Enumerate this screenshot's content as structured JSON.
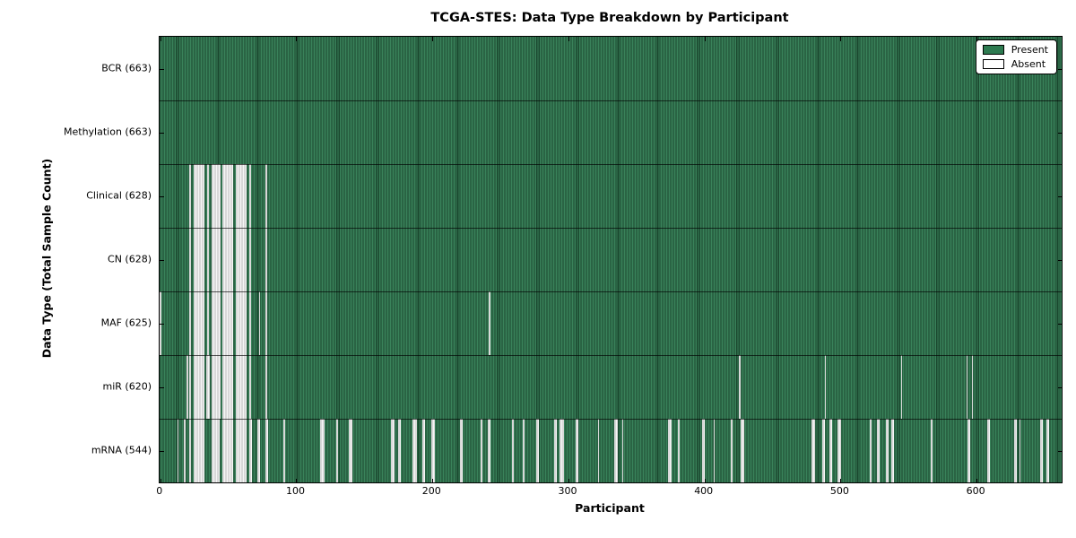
{
  "title": "TCGA-STES: Data Type Breakdown by Participant",
  "chart_data": {
    "type": "heatmap",
    "title": "TCGA-STES: Data Type Breakdown by Participant",
    "xlabel": "Participant",
    "ylabel": "Data Type (Total Sample Count)",
    "x_ticks": [
      0,
      100,
      200,
      300,
      400,
      500,
      600
    ],
    "xlim": [
      -0.5,
      662.5
    ],
    "n_participants": 663,
    "grid": false,
    "legend_position": "upper right",
    "legend": [
      "Present",
      "Absent"
    ],
    "colors": {
      "present": "#2d7a50",
      "present_edge": "#16402a",
      "absent": "#f4f4f4",
      "absent_edge": "#b9b9b9",
      "plot_border": "#000000",
      "background": "#ffffff"
    },
    "rows": [
      {
        "label": "BCR (663)",
        "data_type": "BCR",
        "present_count": 663,
        "absent_participants": []
      },
      {
        "label": "Methylation (663)",
        "data_type": "Methylation",
        "present_count": 663,
        "absent_participants": []
      },
      {
        "label": "Clinical (628)",
        "data_type": "Clinical",
        "present_count": 628,
        "absent_participants": [
          22,
          25,
          26,
          27,
          28,
          29,
          30,
          31,
          32,
          35,
          38,
          39,
          40,
          41,
          42,
          43,
          44,
          46,
          47,
          48,
          49,
          50,
          51,
          52,
          53,
          56,
          57,
          58,
          59,
          60,
          61,
          62,
          63,
          66,
          78
        ]
      },
      {
        "label": "CN (628)",
        "data_type": "CN",
        "present_count": 628,
        "absent_participants": [
          22,
          25,
          26,
          27,
          28,
          29,
          30,
          31,
          32,
          35,
          38,
          39,
          40,
          41,
          42,
          43,
          44,
          46,
          47,
          48,
          49,
          50,
          51,
          52,
          53,
          56,
          57,
          58,
          59,
          60,
          61,
          62,
          63,
          66,
          78
        ]
      },
      {
        "label": "MAF (625)",
        "data_type": "MAF",
        "present_count": 625,
        "absent_participants": [
          0,
          22,
          25,
          26,
          27,
          28,
          29,
          30,
          31,
          32,
          35,
          38,
          39,
          40,
          41,
          42,
          43,
          44,
          46,
          47,
          48,
          49,
          50,
          51,
          52,
          53,
          56,
          57,
          58,
          59,
          60,
          61,
          62,
          63,
          66,
          73,
          78,
          242
        ]
      },
      {
        "label": "miR (620)",
        "data_type": "miR",
        "present_count": 620,
        "absent_participants": [
          20,
          22,
          25,
          26,
          27,
          28,
          29,
          30,
          31,
          32,
          34,
          35,
          36,
          38,
          39,
          40,
          41,
          42,
          43,
          44,
          46,
          47,
          48,
          49,
          50,
          51,
          52,
          53,
          56,
          57,
          58,
          59,
          60,
          61,
          62,
          63,
          66,
          78,
          426,
          489,
          545,
          593,
          597
        ]
      },
      {
        "label": "mRNA (544)",
        "data_type": "mRNA",
        "present_count": 544,
        "absent_participants": [
          13,
          18,
          22,
          25,
          26,
          27,
          28,
          29,
          30,
          31,
          32,
          38,
          39,
          40,
          41,
          42,
          43,
          46,
          47,
          48,
          49,
          50,
          51,
          52,
          53,
          56,
          57,
          58,
          59,
          60,
          61,
          62,
          63,
          66,
          67,
          72,
          73,
          78,
          79,
          91,
          118,
          119,
          120,
          130,
          139,
          140,
          141,
          170,
          171,
          172,
          175,
          176,
          186,
          187,
          188,
          193,
          194,
          200,
          201,
          221,
          222,
          236,
          241,
          242,
          259,
          267,
          277,
          278,
          290,
          291,
          294,
          295,
          296,
          306,
          307,
          322,
          334,
          335,
          336,
          340,
          374,
          375,
          381,
          399,
          400,
          407,
          420,
          427,
          428,
          429,
          479,
          480,
          481,
          487,
          488,
          492,
          493,
          498,
          499,
          500,
          522,
          527,
          528,
          534,
          535,
          538,
          539,
          567,
          594,
          595,
          608,
          609,
          628,
          629,
          632,
          647,
          648,
          652,
          653
        ]
      }
    ]
  },
  "legend": {
    "present_label": "Present",
    "absent_label": "Absent"
  }
}
